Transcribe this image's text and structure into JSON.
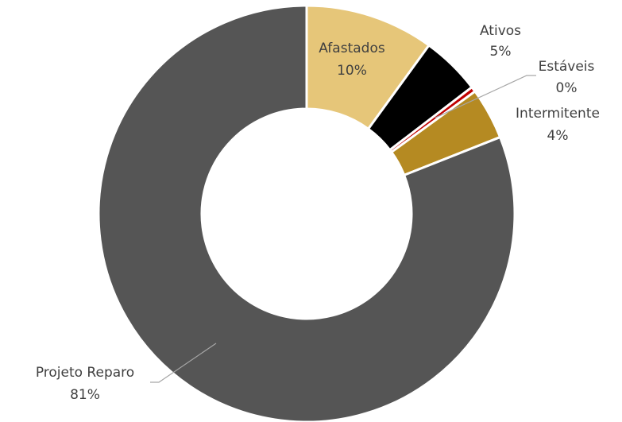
{
  "chart_data": {
    "type": "pie",
    "variant": "donut",
    "start_angle_deg": 0,
    "direction": "clockwise",
    "slices": [
      {
        "name": "Afastados",
        "value": 10,
        "pct_label": "10%",
        "color": "#E6C679"
      },
      {
        "name": "Ativos",
        "value": 4.6,
        "pct_label": "5%",
        "color": "#000000"
      },
      {
        "name": "Estáveis",
        "value": 0.4,
        "pct_label": "0%",
        "color": "#C00000"
      },
      {
        "name": "Intermitente",
        "value": 4,
        "pct_label": "4%",
        "color": "#B58A22"
      },
      {
        "name": "Projeto Reparo",
        "value": 81,
        "pct_label": "81%",
        "color": "#555555"
      }
    ],
    "title": "",
    "legend": "none"
  }
}
